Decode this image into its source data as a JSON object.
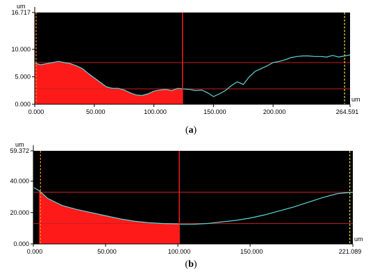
{
  "chart_data": [
    {
      "type": "area",
      "caption_letter": "a",
      "unit": "um",
      "x_unit": "um",
      "xlim": [
        0,
        264.591
      ],
      "ylim": [
        0,
        16.717
      ],
      "y_tick_labels": [
        {
          "value": 0,
          "label": "0.000"
        },
        {
          "value": 5,
          "label": "5.000"
        },
        {
          "value": 10,
          "label": "10.000"
        },
        {
          "value": 16.717,
          "label": "16.717"
        }
      ],
      "x_tick_labels": [
        {
          "value": 0,
          "label": "0.000"
        },
        {
          "value": 50,
          "label": "50.000"
        },
        {
          "value": 100,
          "label": "100.000"
        },
        {
          "value": 150,
          "label": "150.000"
        },
        {
          "value": 200,
          "label": "200.000"
        },
        {
          "value": 264.591,
          "label": "264.591"
        }
      ],
      "cursors": [
        {
          "x": 0,
          "color": "#ff8c1a"
        },
        {
          "x": 124,
          "color": "#ff2020"
        },
        {
          "x": 260,
          "color": "#e8d850"
        }
      ],
      "reference_lines_y": [
        7.6,
        2.8
      ],
      "fill_range": [
        0,
        124
      ],
      "profile": {
        "x": [
          0,
          5,
          10,
          15,
          20,
          25,
          30,
          35,
          40,
          45,
          50,
          55,
          60,
          65,
          70,
          75,
          80,
          85,
          90,
          95,
          100,
          105,
          110,
          115,
          120,
          124,
          130,
          135,
          140,
          145,
          150,
          155,
          160,
          165,
          170,
          175,
          180,
          185,
          190,
          195,
          200,
          205,
          210,
          215,
          220,
          225,
          230,
          235,
          240,
          245,
          250,
          255,
          260,
          264.591
        ],
        "y": [
          7.5,
          7.2,
          7.4,
          7.6,
          7.8,
          7.6,
          7.4,
          7.0,
          6.5,
          5.6,
          4.8,
          4.0,
          3.2,
          2.9,
          2.9,
          2.6,
          2.1,
          1.7,
          1.6,
          1.9,
          2.4,
          2.6,
          2.7,
          2.5,
          2.9,
          2.8,
          2.7,
          2.5,
          2.6,
          2.1,
          1.4,
          1.9,
          2.5,
          3.4,
          4.1,
          3.6,
          5.0,
          6.0,
          6.5,
          7.0,
          7.6,
          7.8,
          8.1,
          8.5,
          8.7,
          8.8,
          8.8,
          8.7,
          8.7,
          8.6,
          8.9,
          8.6,
          8.8,
          9.0
        ]
      }
    },
    {
      "type": "area",
      "caption_letter": "b",
      "unit": "um",
      "x_unit": "um",
      "xlim": [
        0,
        221.089
      ],
      "ylim": [
        0,
        59.372
      ],
      "y_tick_labels": [
        {
          "value": 0,
          "label": "0.000"
        },
        {
          "value": 20,
          "label": "20.000"
        },
        {
          "value": 40,
          "label": "40.000"
        },
        {
          "value": 59.372,
          "label": "59.372"
        }
      ],
      "x_tick_labels": [
        {
          "value": 0,
          "label": "0.000"
        },
        {
          "value": 50,
          "label": "50.000"
        },
        {
          "value": 100,
          "label": "100.000"
        },
        {
          "value": 150,
          "label": "150.000"
        },
        {
          "value": 221.089,
          "label": "221.089"
        }
      ],
      "cursors": [
        {
          "x": 4,
          "color": "#ff8c1a"
        },
        {
          "x": 101,
          "color": "#ff2020"
        },
        {
          "x": 219,
          "color": "#e8d850"
        }
      ],
      "reference_lines_y": [
        33,
        13
      ],
      "fill_range": [
        4,
        101
      ],
      "profile": {
        "x": [
          0,
          4,
          10,
          20,
          30,
          40,
          50,
          60,
          70,
          80,
          90,
          100,
          101,
          110,
          120,
          130,
          140,
          150,
          160,
          170,
          180,
          190,
          200,
          210,
          221.089
        ],
        "y": [
          36,
          34,
          29,
          24.5,
          22,
          20,
          18,
          16,
          14.5,
          13.5,
          13,
          12.8,
          12.5,
          12.5,
          13,
          14,
          15,
          16.5,
          18.5,
          21,
          23.5,
          26.5,
          29.5,
          32,
          33
        ]
      }
    }
  ]
}
